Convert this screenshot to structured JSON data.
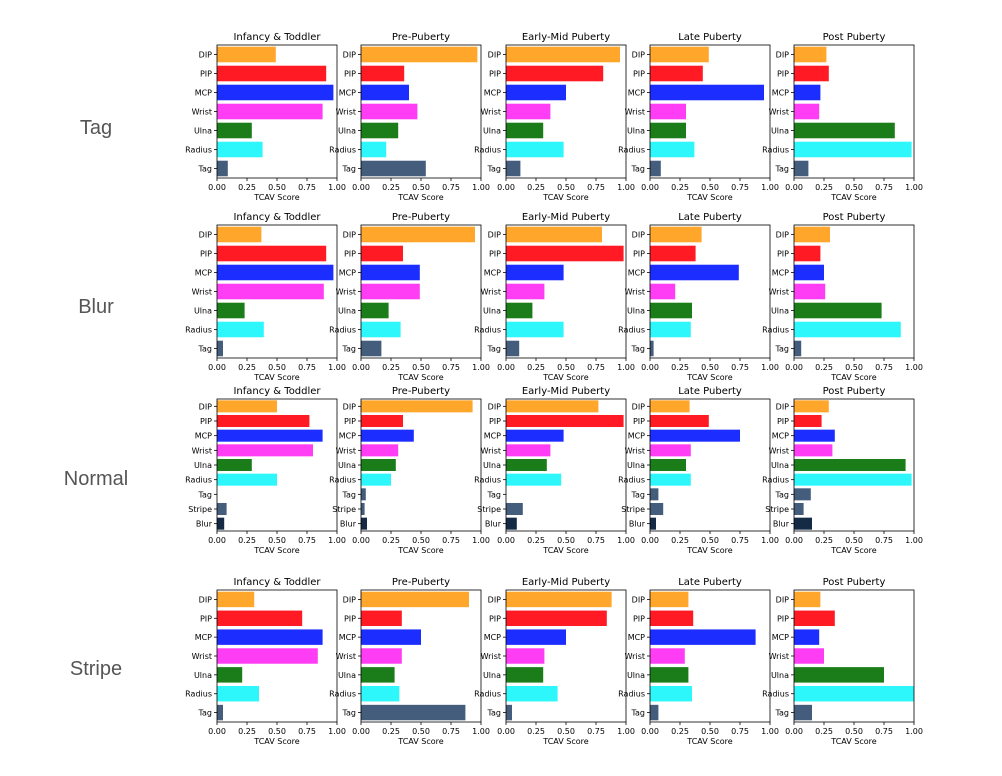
{
  "colors": {
    "DIP": "#ffa62b",
    "PIP": "#ff1a24",
    "MCP": "#1c2dff",
    "Wrist": "#ff3df4",
    "Ulna": "#1a7d1a",
    "Radius": "#2ef7fb",
    "Tag": "#445d7c",
    "Stripe": "#445d7c",
    "Blur": "#142a45"
  },
  "chart_data": [
    {
      "type": "bar",
      "orientation": "horizontal",
      "row_label": "Tag",
      "title": "Infancy & Toddler",
      "xlabel": "TCAV Score",
      "xlim": [
        0,
        1
      ],
      "xticks": [
        "0.00",
        "0.25",
        "0.50",
        "0.75",
        "1.00"
      ],
      "categories": [
        "DIP",
        "PIP",
        "MCP",
        "Wrist",
        "Ulna",
        "Radius",
        "Tag"
      ],
      "values": [
        0.49,
        0.91,
        0.97,
        0.88,
        0.29,
        0.38,
        0.09
      ]
    },
    {
      "type": "bar",
      "orientation": "horizontal",
      "row_label": "Tag",
      "title": "Pre-Puberty",
      "xlabel": "TCAV Score",
      "xlim": [
        0,
        1
      ],
      "xticks": [
        "0.00",
        "0.25",
        "0.50",
        "0.75",
        "1.00"
      ],
      "categories": [
        "DIP",
        "PIP",
        "MCP",
        "Wrist",
        "Ulna",
        "Radius",
        "Tag"
      ],
      "values": [
        0.97,
        0.36,
        0.4,
        0.47,
        0.31,
        0.21,
        0.54
      ]
    },
    {
      "type": "bar",
      "orientation": "horizontal",
      "row_label": "Tag",
      "title": "Early-Mid Puberty",
      "xlabel": "TCAV Score",
      "xlim": [
        0,
        1
      ],
      "xticks": [
        "0.00",
        "0.25",
        "0.50",
        "0.75",
        "1.00"
      ],
      "categories": [
        "DIP",
        "PIP",
        "MCP",
        "Wrist",
        "Ulna",
        "Radius",
        "Tag"
      ],
      "values": [
        0.95,
        0.81,
        0.5,
        0.37,
        0.31,
        0.48,
        0.12
      ]
    },
    {
      "type": "bar",
      "orientation": "horizontal",
      "row_label": "Tag",
      "title": "Late Puberty",
      "xlabel": "TCAV Score",
      "xlim": [
        0,
        1
      ],
      "xticks": [
        "0.00",
        "0.25",
        "0.50",
        "0.75",
        "1.00"
      ],
      "categories": [
        "DIP",
        "PIP",
        "MCP",
        "Wrist",
        "Ulna",
        "Radius",
        "Tag"
      ],
      "values": [
        0.49,
        0.44,
        0.95,
        0.3,
        0.3,
        0.37,
        0.09
      ]
    },
    {
      "type": "bar",
      "orientation": "horizontal",
      "row_label": "Tag",
      "title": "Post Puberty",
      "xlabel": "TCAV Score",
      "xlim": [
        0,
        1
      ],
      "xticks": [
        "0.00",
        "0.25",
        "0.50",
        "0.75",
        "1.00"
      ],
      "categories": [
        "DIP",
        "PIP",
        "MCP",
        "Wrist",
        "Ulna",
        "Radius",
        "Tag"
      ],
      "values": [
        0.27,
        0.29,
        0.22,
        0.21,
        0.84,
        0.98,
        0.12
      ]
    },
    {
      "type": "bar",
      "orientation": "horizontal",
      "row_label": "Blur",
      "title": "Infancy & Toddler",
      "xlabel": "TCAV Score",
      "xlim": [
        0,
        1
      ],
      "xticks": [
        "0.00",
        "0.25",
        "0.50",
        "0.75",
        "1.00"
      ],
      "categories": [
        "DIP",
        "PIP",
        "MCP",
        "Wrist",
        "Ulna",
        "Radius",
        "Tag"
      ],
      "values": [
        0.37,
        0.91,
        0.97,
        0.89,
        0.23,
        0.39,
        0.05
      ]
    },
    {
      "type": "bar",
      "orientation": "horizontal",
      "row_label": "Blur",
      "title": "Pre-Puberty",
      "xlabel": "TCAV Score",
      "xlim": [
        0,
        1
      ],
      "xticks": [
        "0.00",
        "0.25",
        "0.50",
        "0.75",
        "1.00"
      ],
      "categories": [
        "DIP",
        "PIP",
        "MCP",
        "Wrist",
        "Ulna",
        "Radius",
        "Tag"
      ],
      "values": [
        0.95,
        0.35,
        0.49,
        0.49,
        0.23,
        0.33,
        0.17
      ]
    },
    {
      "type": "bar",
      "orientation": "horizontal",
      "row_label": "Blur",
      "title": "Early-Mid Puberty",
      "xlabel": "TCAV Score",
      "xlim": [
        0,
        1
      ],
      "xticks": [
        "0.00",
        "0.25",
        "0.50",
        "0.75",
        "1.00"
      ],
      "categories": [
        "DIP",
        "PIP",
        "MCP",
        "Wrist",
        "Ulna",
        "Radius",
        "Tag"
      ],
      "values": [
        0.8,
        0.98,
        0.48,
        0.32,
        0.22,
        0.48,
        0.11
      ]
    },
    {
      "type": "bar",
      "orientation": "horizontal",
      "row_label": "Blur",
      "title": "Late Puberty",
      "xlabel": "TCAV Score",
      "xlim": [
        0,
        1
      ],
      "xticks": [
        "0.00",
        "0.25",
        "0.50",
        "0.75",
        "1.00"
      ],
      "categories": [
        "DIP",
        "PIP",
        "MCP",
        "Wrist",
        "Ulna",
        "Radius",
        "Tag"
      ],
      "values": [
        0.43,
        0.38,
        0.74,
        0.21,
        0.35,
        0.34,
        0.03
      ]
    },
    {
      "type": "bar",
      "orientation": "horizontal",
      "row_label": "Blur",
      "title": "Post Puberty",
      "xlabel": "TCAV Score",
      "xlim": [
        0,
        1
      ],
      "xticks": [
        "0.00",
        "0.25",
        "0.50",
        "0.75",
        "1.00"
      ],
      "categories": [
        "DIP",
        "PIP",
        "MCP",
        "Wrist",
        "Ulna",
        "Radius",
        "Tag"
      ],
      "values": [
        0.3,
        0.22,
        0.25,
        0.26,
        0.73,
        0.89,
        0.06
      ]
    },
    {
      "type": "bar",
      "orientation": "horizontal",
      "row_label": "Normal",
      "title": "Infancy & Toddler",
      "xlabel": "TCAV Score",
      "xlim": [
        0,
        1
      ],
      "xticks": [
        "0.00",
        "0.25",
        "0.50",
        "0.75",
        "1.00"
      ],
      "categories": [
        "DIP",
        "PIP",
        "MCP",
        "Wrist",
        "Ulna",
        "Radius",
        "Tag",
        "Stripe",
        "Blur"
      ],
      "values": [
        0.5,
        0.77,
        0.88,
        0.8,
        0.29,
        0.5,
        0.0,
        0.08,
        0.06
      ]
    },
    {
      "type": "bar",
      "orientation": "horizontal",
      "row_label": "Normal",
      "title": "Pre-Puberty",
      "xlabel": "TCAV Score",
      "xlim": [
        0,
        1
      ],
      "xticks": [
        "0.00",
        "0.25",
        "0.50",
        "0.75",
        "1.00"
      ],
      "categories": [
        "DIP",
        "PIP",
        "MCP",
        "Wrist",
        "Ulna",
        "Radius",
        "Tag",
        "Stripe",
        "Blur"
      ],
      "values": [
        0.93,
        0.35,
        0.44,
        0.31,
        0.29,
        0.25,
        0.04,
        0.03,
        0.05
      ]
    },
    {
      "type": "bar",
      "orientation": "horizontal",
      "row_label": "Normal",
      "title": "Early-Mid Puberty",
      "xlabel": "TCAV Score",
      "xlim": [
        0,
        1
      ],
      "xticks": [
        "0.00",
        "0.25",
        "0.50",
        "0.75",
        "1.00"
      ],
      "categories": [
        "DIP",
        "PIP",
        "MCP",
        "Wrist",
        "Ulna",
        "Radius",
        "Tag",
        "Stripe",
        "Blur"
      ],
      "values": [
        0.77,
        0.98,
        0.48,
        0.37,
        0.34,
        0.46,
        0.0,
        0.14,
        0.09
      ]
    },
    {
      "type": "bar",
      "orientation": "horizontal",
      "row_label": "Normal",
      "title": "Late Puberty",
      "xlabel": "TCAV Score",
      "xlim": [
        0,
        1
      ],
      "xticks": [
        "0.00",
        "0.25",
        "0.50",
        "0.75",
        "1.00"
      ],
      "categories": [
        "DIP",
        "PIP",
        "MCP",
        "Wrist",
        "Ulna",
        "Radius",
        "Tag",
        "Stripe",
        "Blur"
      ],
      "values": [
        0.33,
        0.49,
        0.75,
        0.34,
        0.3,
        0.34,
        0.07,
        0.11,
        0.05
      ]
    },
    {
      "type": "bar",
      "orientation": "horizontal",
      "row_label": "Normal",
      "title": "Post Puberty",
      "xlabel": "TCAV Score",
      "xlim": [
        0,
        1
      ],
      "xticks": [
        "0.00",
        "0.25",
        "0.50",
        "0.75",
        "1.00"
      ],
      "categories": [
        "DIP",
        "PIP",
        "MCP",
        "Wrist",
        "Ulna",
        "Radius",
        "Tag",
        "Stripe",
        "Blur"
      ],
      "values": [
        0.29,
        0.23,
        0.34,
        0.32,
        0.93,
        0.98,
        0.14,
        0.08,
        0.15
      ]
    },
    {
      "type": "bar",
      "orientation": "horizontal",
      "row_label": "Stripe",
      "title": "Infancy & Toddler",
      "xlabel": "TCAV Score",
      "xlim": [
        0,
        1
      ],
      "xticks": [
        "0.00",
        "0.25",
        "0.50",
        "0.75",
        "1.00"
      ],
      "categories": [
        "DIP",
        "PIP",
        "MCP",
        "Wrist",
        "Ulna",
        "Radius",
        "Tag"
      ],
      "values": [
        0.31,
        0.71,
        0.88,
        0.84,
        0.21,
        0.35,
        0.05
      ]
    },
    {
      "type": "bar",
      "orientation": "horizontal",
      "row_label": "Stripe",
      "title": "Pre-Puberty",
      "xlabel": "TCAV Score",
      "xlim": [
        0,
        1
      ],
      "xticks": [
        "0.00",
        "0.25",
        "0.50",
        "0.75",
        "1.00"
      ],
      "categories": [
        "DIP",
        "PIP",
        "MCP",
        "Wrist",
        "Ulna",
        "Radius",
        "Tag"
      ],
      "values": [
        0.9,
        0.34,
        0.5,
        0.34,
        0.28,
        0.32,
        0.87
      ]
    },
    {
      "type": "bar",
      "orientation": "horizontal",
      "row_label": "Stripe",
      "title": "Early-Mid Puberty",
      "xlabel": "TCAV Score",
      "xlim": [
        0,
        1
      ],
      "xticks": [
        "0.00",
        "0.25",
        "0.50",
        "0.75",
        "1.00"
      ],
      "categories": [
        "DIP",
        "PIP",
        "MCP",
        "Wrist",
        "Ulna",
        "Radius",
        "Tag"
      ],
      "values": [
        0.88,
        0.84,
        0.5,
        0.32,
        0.31,
        0.43,
        0.05
      ]
    },
    {
      "type": "bar",
      "orientation": "horizontal",
      "row_label": "Stripe",
      "title": "Late Puberty",
      "xlabel": "TCAV Score",
      "xlim": [
        0,
        1
      ],
      "xticks": [
        "0.00",
        "0.25",
        "0.50",
        "0.75",
        "1.00"
      ],
      "categories": [
        "DIP",
        "PIP",
        "MCP",
        "Wrist",
        "Ulna",
        "Radius",
        "Tag"
      ],
      "values": [
        0.32,
        0.36,
        0.88,
        0.29,
        0.32,
        0.35,
        0.07
      ]
    },
    {
      "type": "bar",
      "orientation": "horizontal",
      "row_label": "Stripe",
      "title": "Post Puberty",
      "xlabel": "TCAV Score",
      "xlim": [
        0,
        1
      ],
      "xticks": [
        "0.00",
        "0.25",
        "0.50",
        "0.75",
        "1.00"
      ],
      "categories": [
        "DIP",
        "PIP",
        "MCP",
        "Wrist",
        "Ulna",
        "Radius",
        "Tag"
      ],
      "values": [
        0.22,
        0.34,
        0.21,
        0.25,
        0.75,
        1.0,
        0.15
      ]
    }
  ]
}
